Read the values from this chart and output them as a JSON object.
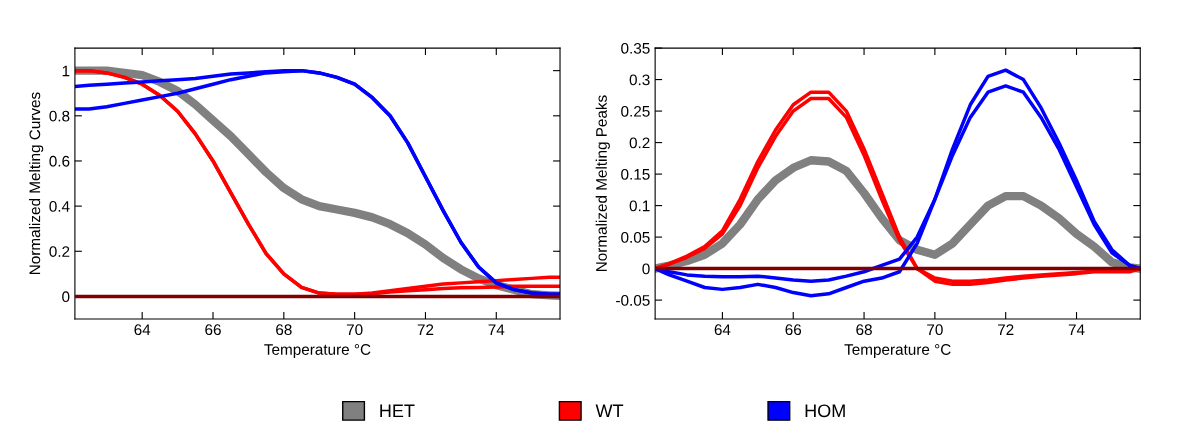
{
  "chart_data": [
    {
      "type": "line",
      "xlabel": "Temperature °C",
      "ylabel": "Normalized Melting Curves",
      "legend": "bottom",
      "x": [
        62.1,
        62.5,
        63,
        63.5,
        64,
        64.5,
        65,
        65.5,
        66,
        66.5,
        67,
        67.5,
        68,
        68.5,
        69,
        69.5,
        70,
        70.5,
        71,
        71.5,
        72,
        72.5,
        73,
        73.5,
        74,
        74.5,
        75,
        75.5,
        75.8
      ],
      "xlim": [
        62.1,
        75.8
      ],
      "xticks": [
        64,
        66,
        68,
        70,
        72,
        74
      ],
      "ylim": [
        -0.1,
        1.1
      ],
      "yticks": [
        0,
        0.2,
        0.4,
        0.6,
        0.8,
        1
      ],
      "ref_lines": [
        {
          "axis": "y",
          "value": 0,
          "color": "#800000"
        }
      ],
      "series": [
        {
          "name": "HET",
          "color": "#808080",
          "values": [
            1.0,
            1.0,
            1.0,
            0.99,
            0.98,
            0.95,
            0.91,
            0.85,
            0.78,
            0.71,
            0.63,
            0.55,
            0.48,
            0.43,
            0.4,
            0.385,
            0.37,
            0.35,
            0.32,
            0.28,
            0.23,
            0.17,
            0.12,
            0.08,
            0.05,
            0.03,
            0.01,
            0.005,
            0.003
          ]
        },
        {
          "name": "WT",
          "color": "#ff0000",
          "values": [
            1.0,
            1.0,
            0.99,
            0.97,
            0.94,
            0.89,
            0.82,
            0.72,
            0.6,
            0.46,
            0.32,
            0.19,
            0.1,
            0.04,
            0.015,
            0.01,
            0.01,
            0.015,
            0.025,
            0.035,
            0.045,
            0.055,
            0.06,
            0.065,
            0.07,
            0.075,
            0.08,
            0.085,
            0.085
          ]
        },
        {
          "color": "#ff0000",
          "values": [
            1.0,
            1.0,
            0.99,
            0.97,
            0.94,
            0.89,
            0.82,
            0.72,
            0.6,
            0.46,
            0.32,
            0.19,
            0.1,
            0.04,
            0.015,
            0.01,
            0.01,
            0.012,
            0.02,
            0.025,
            0.03,
            0.035,
            0.038,
            0.04,
            0.042,
            0.045,
            0.045,
            0.045,
            0.045
          ]
        },
        {
          "name": "HOM",
          "color": "#0000ff",
          "values": [
            0.93,
            0.935,
            0.94,
            0.945,
            0.95,
            0.955,
            0.96,
            0.965,
            0.975,
            0.985,
            0.99,
            0.995,
            1.0,
            1.0,
            0.99,
            0.97,
            0.94,
            0.88,
            0.8,
            0.68,
            0.53,
            0.38,
            0.24,
            0.13,
            0.06,
            0.03,
            0.015,
            0.01,
            0.01
          ]
        },
        {
          "color": "#0000ff",
          "values": [
            0.83,
            0.83,
            0.84,
            0.855,
            0.87,
            0.885,
            0.9,
            0.92,
            0.94,
            0.96,
            0.975,
            0.99,
            0.995,
            1.0,
            0.99,
            0.97,
            0.94,
            0.88,
            0.8,
            0.68,
            0.53,
            0.38,
            0.24,
            0.13,
            0.06,
            0.03,
            0.015,
            0.01,
            0.01
          ]
        }
      ]
    },
    {
      "type": "line",
      "xlabel": "Temperature °C",
      "ylabel": "Normalized Melting Peaks",
      "x": [
        62.1,
        62.5,
        63,
        63.5,
        64,
        64.5,
        65,
        65.5,
        66,
        66.5,
        67,
        67.5,
        68,
        68.5,
        69,
        69.5,
        70,
        70.5,
        71,
        71.5,
        72,
        72.5,
        73,
        73.5,
        74,
        74.5,
        75,
        75.5,
        75.8
      ],
      "xlim": [
        62.1,
        75.8
      ],
      "xticks": [
        64,
        66,
        68,
        70,
        72,
        74
      ],
      "ylim": [
        -0.08,
        0.35
      ],
      "yticks": [
        -0.05,
        0,
        0.05,
        0.1,
        0.15,
        0.2,
        0.25,
        0.3,
        0.35
      ],
      "ref_lines": [
        {
          "axis": "y",
          "value": 0,
          "color": "#800000"
        }
      ],
      "series": [
        {
          "color": "#808080",
          "values": [
            0,
            0.005,
            0.012,
            0.022,
            0.04,
            0.07,
            0.11,
            0.14,
            0.16,
            0.172,
            0.17,
            0.155,
            0.12,
            0.08,
            0.045,
            0.03,
            0.022,
            0.04,
            0.07,
            0.1,
            0.115,
            0.115,
            0.1,
            0.08,
            0.055,
            0.035,
            0.01,
            0.002,
            0
          ]
        },
        {
          "color": "#ff0000",
          "values": [
            0,
            0.008,
            0.02,
            0.035,
            0.06,
            0.11,
            0.17,
            0.22,
            0.26,
            0.28,
            0.28,
            0.25,
            0.19,
            0.12,
            0.05,
            0.0,
            -0.02,
            -0.025,
            -0.025,
            -0.022,
            -0.018,
            -0.015,
            -0.012,
            -0.01,
            -0.008,
            -0.005,
            -0.005,
            -0.005,
            0
          ]
        },
        {
          "color": "#ff0000",
          "values": [
            0,
            0.007,
            0.018,
            0.032,
            0.055,
            0.1,
            0.16,
            0.21,
            0.25,
            0.27,
            0.27,
            0.24,
            0.18,
            0.11,
            0.045,
            0.0,
            -0.015,
            -0.02,
            -0.02,
            -0.018,
            -0.015,
            -0.012,
            -0.01,
            -0.008,
            -0.006,
            -0.004,
            -0.004,
            -0.004,
            0
          ]
        },
        {
          "color": "#0000ff",
          "values": [
            0,
            -0.005,
            -0.01,
            -0.012,
            -0.013,
            -0.013,
            -0.012,
            -0.015,
            -0.018,
            -0.02,
            -0.018,
            -0.012,
            -0.005,
            0.005,
            0.015,
            0.05,
            0.11,
            0.18,
            0.24,
            0.28,
            0.29,
            0.28,
            0.24,
            0.19,
            0.13,
            0.07,
            0.025,
            0.005,
            0
          ]
        },
        {
          "color": "#0000ff",
          "values": [
            0,
            -0.01,
            -0.02,
            -0.03,
            -0.033,
            -0.03,
            -0.025,
            -0.03,
            -0.038,
            -0.043,
            -0.04,
            -0.03,
            -0.02,
            -0.015,
            -0.005,
            0.04,
            0.11,
            0.19,
            0.26,
            0.305,
            0.315,
            0.3,
            0.255,
            0.2,
            0.14,
            0.075,
            0.03,
            0.005,
            0
          ]
        }
      ]
    }
  ]
}
